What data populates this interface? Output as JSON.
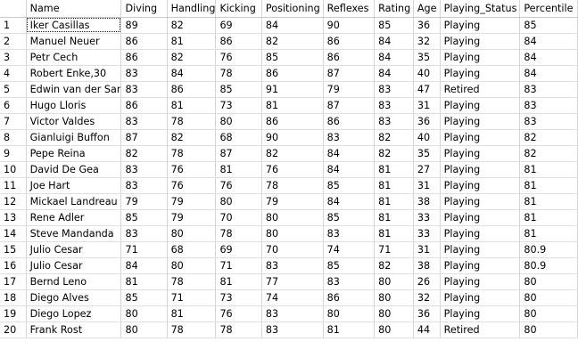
{
  "columns": [
    "Name",
    "Diving",
    "Handling",
    "Kicking",
    "Positioning",
    "Reflexes",
    "Rating",
    "Age",
    "Playing_Status",
    "Percentile"
  ],
  "rows": [
    {
      "num": "1",
      "cells": [
        "Iker Casillas",
        "89",
        "82",
        "69",
        "84",
        "90",
        "85",
        "36",
        "Playing",
        "85"
      ]
    },
    {
      "num": "2",
      "cells": [
        "Manuel Neuer",
        "86",
        "81",
        "86",
        "82",
        "86",
        "84",
        "32",
        "Playing",
        "84"
      ]
    },
    {
      "num": "3",
      "cells": [
        "Petr Cech",
        "86",
        "82",
        "76",
        "85",
        "86",
        "84",
        "35",
        "Playing",
        "84"
      ]
    },
    {
      "num": "4",
      "cells": [
        "Robert Enke,30",
        "83",
        "84",
        "78",
        "86",
        "87",
        "84",
        "40",
        "Playing",
        "84"
      ]
    },
    {
      "num": "5",
      "cells": [
        "Edwin van der Sar",
        "83",
        "86",
        "85",
        "91",
        "79",
        "83",
        "47",
        "Retired",
        "83"
      ]
    },
    {
      "num": "6",
      "cells": [
        "Hugo Lloris",
        "86",
        "81",
        "73",
        "81",
        "87",
        "83",
        "31",
        "Playing",
        "83"
      ]
    },
    {
      "num": "7",
      "cells": [
        "Victor Valdes",
        "83",
        "78",
        "80",
        "86",
        "86",
        "83",
        "36",
        "Playing",
        "83"
      ]
    },
    {
      "num": "8",
      "cells": [
        "Gianluigi Buffon",
        "87",
        "82",
        "68",
        "90",
        "83",
        "82",
        "40",
        "Playing",
        "82"
      ]
    },
    {
      "num": "9",
      "cells": [
        "Pepe Reina",
        "82",
        "78",
        "87",
        "82",
        "84",
        "82",
        "35",
        "Playing",
        "82"
      ]
    },
    {
      "num": "10",
      "cells": [
        "David De Gea",
        "83",
        "76",
        "81",
        "76",
        "84",
        "81",
        "27",
        "Playing",
        "81"
      ]
    },
    {
      "num": "11",
      "cells": [
        "Joe Hart",
        "83",
        "76",
        "76",
        "78",
        "85",
        "81",
        "31",
        "Playing",
        "81"
      ]
    },
    {
      "num": "12",
      "cells": [
        "Mickael Landreau",
        "79",
        "79",
        "80",
        "79",
        "84",
        "81",
        "38",
        "Playing",
        "81"
      ]
    },
    {
      "num": "13",
      "cells": [
        "Rene Adler",
        "85",
        "79",
        "70",
        "80",
        "85",
        "81",
        "33",
        "Playing",
        "81"
      ]
    },
    {
      "num": "14",
      "cells": [
        "Steve Mandanda",
        "83",
        "80",
        "78",
        "80",
        "83",
        "81",
        "33",
        "Playing",
        "81"
      ]
    },
    {
      "num": "15",
      "cells": [
        "Julio Cesar",
        "71",
        "68",
        "69",
        "70",
        "74",
        "71",
        "31",
        "Playing",
        "80.9"
      ]
    },
    {
      "num": "16",
      "cells": [
        "Julio Cesar",
        "84",
        "80",
        "71",
        "83",
        "85",
        "82",
        "38",
        "Playing",
        "80.9"
      ]
    },
    {
      "num": "17",
      "cells": [
        "Bernd Leno",
        "81",
        "78",
        "81",
        "77",
        "83",
        "80",
        "26",
        "Playing",
        "80"
      ]
    },
    {
      "num": "18",
      "cells": [
        "Diego Alves",
        "85",
        "71",
        "73",
        "74",
        "86",
        "80",
        "32",
        "Playing",
        "80"
      ]
    },
    {
      "num": "19",
      "cells": [
        "Diego Lopez",
        "80",
        "81",
        "76",
        "83",
        "80",
        "80",
        "36",
        "Playing",
        "80"
      ]
    },
    {
      "num": "20",
      "cells": [
        "Frank Rost",
        "80",
        "78",
        "78",
        "83",
        "81",
        "80",
        "44",
        "Retired",
        "80"
      ]
    }
  ]
}
